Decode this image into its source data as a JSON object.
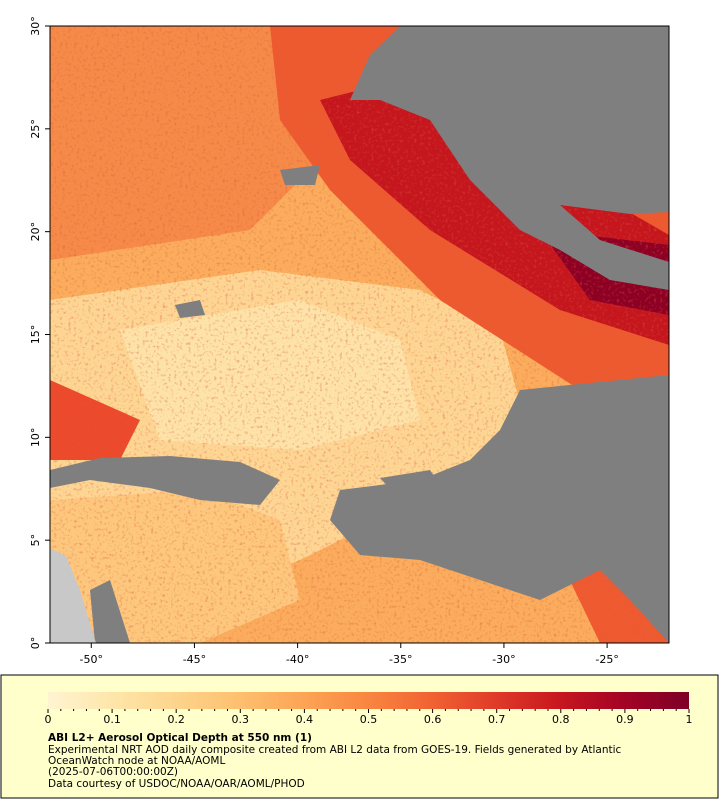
{
  "map": {
    "xlim": [
      -52,
      -22
    ],
    "ylim": [
      0,
      30
    ],
    "xticks": [
      {
        "value": -50,
        "label": "-50°"
      },
      {
        "value": -45,
        "label": "-45°"
      },
      {
        "value": -40,
        "label": "-40°"
      },
      {
        "value": -35,
        "label": "-35°"
      },
      {
        "value": -30,
        "label": "-30°"
      },
      {
        "value": -25,
        "label": "-25°"
      }
    ],
    "yticks": [
      {
        "value": 0,
        "label": "0°"
      },
      {
        "value": 5,
        "label": "5°"
      },
      {
        "value": 10,
        "label": "10°"
      },
      {
        "value": 15,
        "label": "15°"
      },
      {
        "value": 20,
        "label": "20°"
      },
      {
        "value": 25,
        "label": "25°"
      },
      {
        "value": 30,
        "label": "30°"
      }
    ]
  },
  "colorbar": {
    "range": [
      0,
      1
    ],
    "ticks": [
      0,
      0.1,
      0.2,
      0.3,
      0.4,
      0.5,
      0.6,
      0.7,
      0.8,
      0.9,
      1
    ],
    "colors": [
      "#fff4d2",
      "#fee6aa",
      "#fdd48c",
      "#fdbf6e",
      "#fca455",
      "#f98540",
      "#f06232",
      "#df3a28",
      "#c7161f",
      "#a20325",
      "#7e0026"
    ]
  },
  "caption": {
    "title": "ABI L2+ Aerosol Optical Depth at 550 nm (1)",
    "lines": [
      "Experimental NRT AOD daily composite created from ABI L2 data from GOES-19. Fields generated by Atlantic",
      "OceanWatch node at NOAA/AOML",
      "(2025-07-06T00:00:00Z)",
      "Data courtesy of USDOC/NOAA/OAR/AOML/PHOD"
    ]
  }
}
